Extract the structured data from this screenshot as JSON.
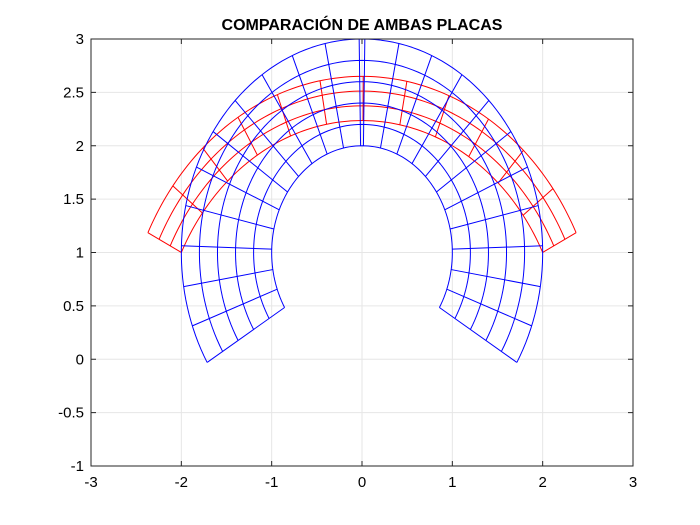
{
  "chart_data": {
    "type": "mesh",
    "title": "COMPARACIÓN DE AMBAS PLACAS",
    "xlabel": "",
    "ylabel": "",
    "xlim": [
      -3,
      3
    ],
    "ylim": [
      -1,
      3
    ],
    "xticks": [
      -3,
      -2,
      -1,
      0,
      1,
      2,
      3
    ],
    "yticks": [
      -1,
      -0.5,
      0,
      0.5,
      1,
      1.5,
      2,
      2.5,
      3
    ],
    "xtick_labels": [
      "-3",
      "-2",
      "-1",
      "0",
      "1",
      "2",
      "3"
    ],
    "ytick_labels": [
      "-1",
      "-0.5",
      "0",
      "0.5",
      "1",
      "1.5",
      "2",
      "2.5",
      "3"
    ],
    "grid": true,
    "legend": "none",
    "series": [
      {
        "color": "#ff0000",
        "center": [
          0,
          0
        ],
        "radii": [
          2.236,
          2.374,
          2.512,
          2.65
        ],
        "angles_deg": [
          26.57,
          37.1,
          47.6,
          58.1,
          68.7,
          79.2,
          89.7,
          100.1,
          110.7,
          121.2,
          131.7,
          142.2,
          153.43
        ]
      },
      {
        "color": "#0000ff",
        "center": [
          0,
          1
        ],
        "radii": [
          1.0,
          1.2,
          1.4,
          1.6,
          1.8,
          2.0
        ],
        "angles_deg": [
          -31.0,
          -20.1,
          -9.2,
          1.8,
          12.7,
          23.6,
          34.5,
          45.4,
          56.4,
          67.3,
          78.2,
          89.1,
          90.9,
          101.8,
          112.7,
          123.6,
          134.6,
          145.5,
          156.4,
          167.3,
          178.2,
          189.2,
          200.1,
          211.0
        ]
      }
    ]
  }
}
